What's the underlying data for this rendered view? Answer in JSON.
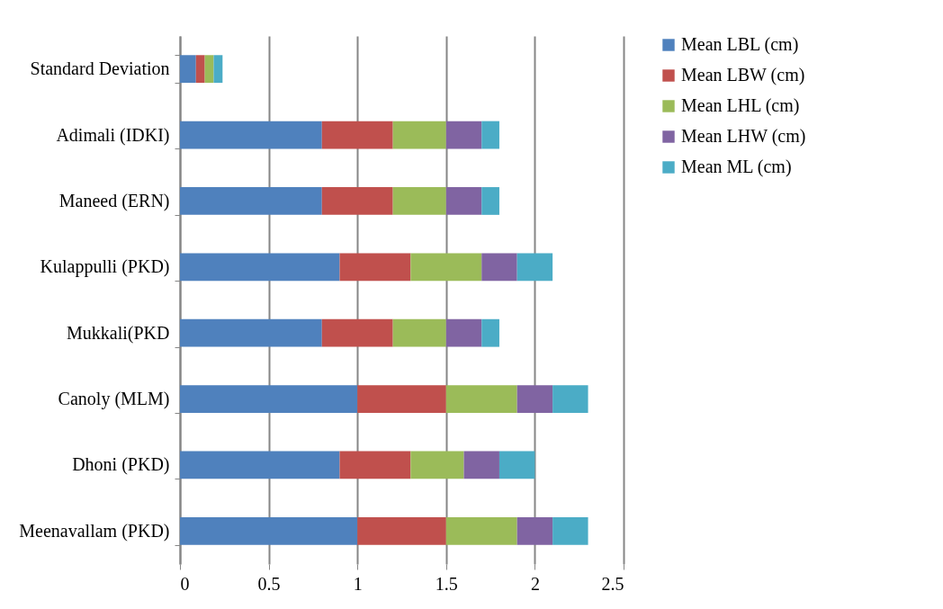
{
  "chart_data": {
    "type": "bar",
    "orientation": "horizontal",
    "stacked": true,
    "categories": [
      "Standard Deviation",
      "Adimali (IDKI)",
      "Maneed (ERN)",
      "Kulappulli (PKD)",
      "Mukkali(PKD",
      "Canoly (MLM)",
      "Dhoni (PKD)",
      "Meenavallam (PKD)"
    ],
    "series": [
      {
        "name": "Mean LBL (cm)",
        "color": "#4f81bd",
        "values": [
          0.09,
          0.8,
          0.8,
          0.9,
          0.8,
          1.0,
          0.9,
          1.0
        ]
      },
      {
        "name": "Mean LBW (cm)",
        "color": "#c0504d",
        "values": [
          0.05,
          0.4,
          0.4,
          0.4,
          0.4,
          0.5,
          0.4,
          0.5
        ]
      },
      {
        "name": "Mean LHL (cm)",
        "color": "#9bbb59",
        "values": [
          0.05,
          0.3,
          0.3,
          0.4,
          0.3,
          0.4,
          0.3,
          0.4
        ]
      },
      {
        "name": "Mean LHW (cm)",
        "color": "#8064a2",
        "values": [
          0,
          0.2,
          0.2,
          0.2,
          0.2,
          0.2,
          0.2,
          0.2
        ]
      },
      {
        "name": "Mean ML (cm)",
        "color": "#4bacc6",
        "values": [
          0.05,
          0.1,
          0.1,
          0.2,
          0.1,
          0.2,
          0.2,
          0.2
        ]
      }
    ],
    "xlim": [
      0,
      2.5
    ],
    "xticks": [
      0,
      0.5,
      1,
      1.5,
      2,
      2.5
    ],
    "grid": "x",
    "legend": "right"
  }
}
